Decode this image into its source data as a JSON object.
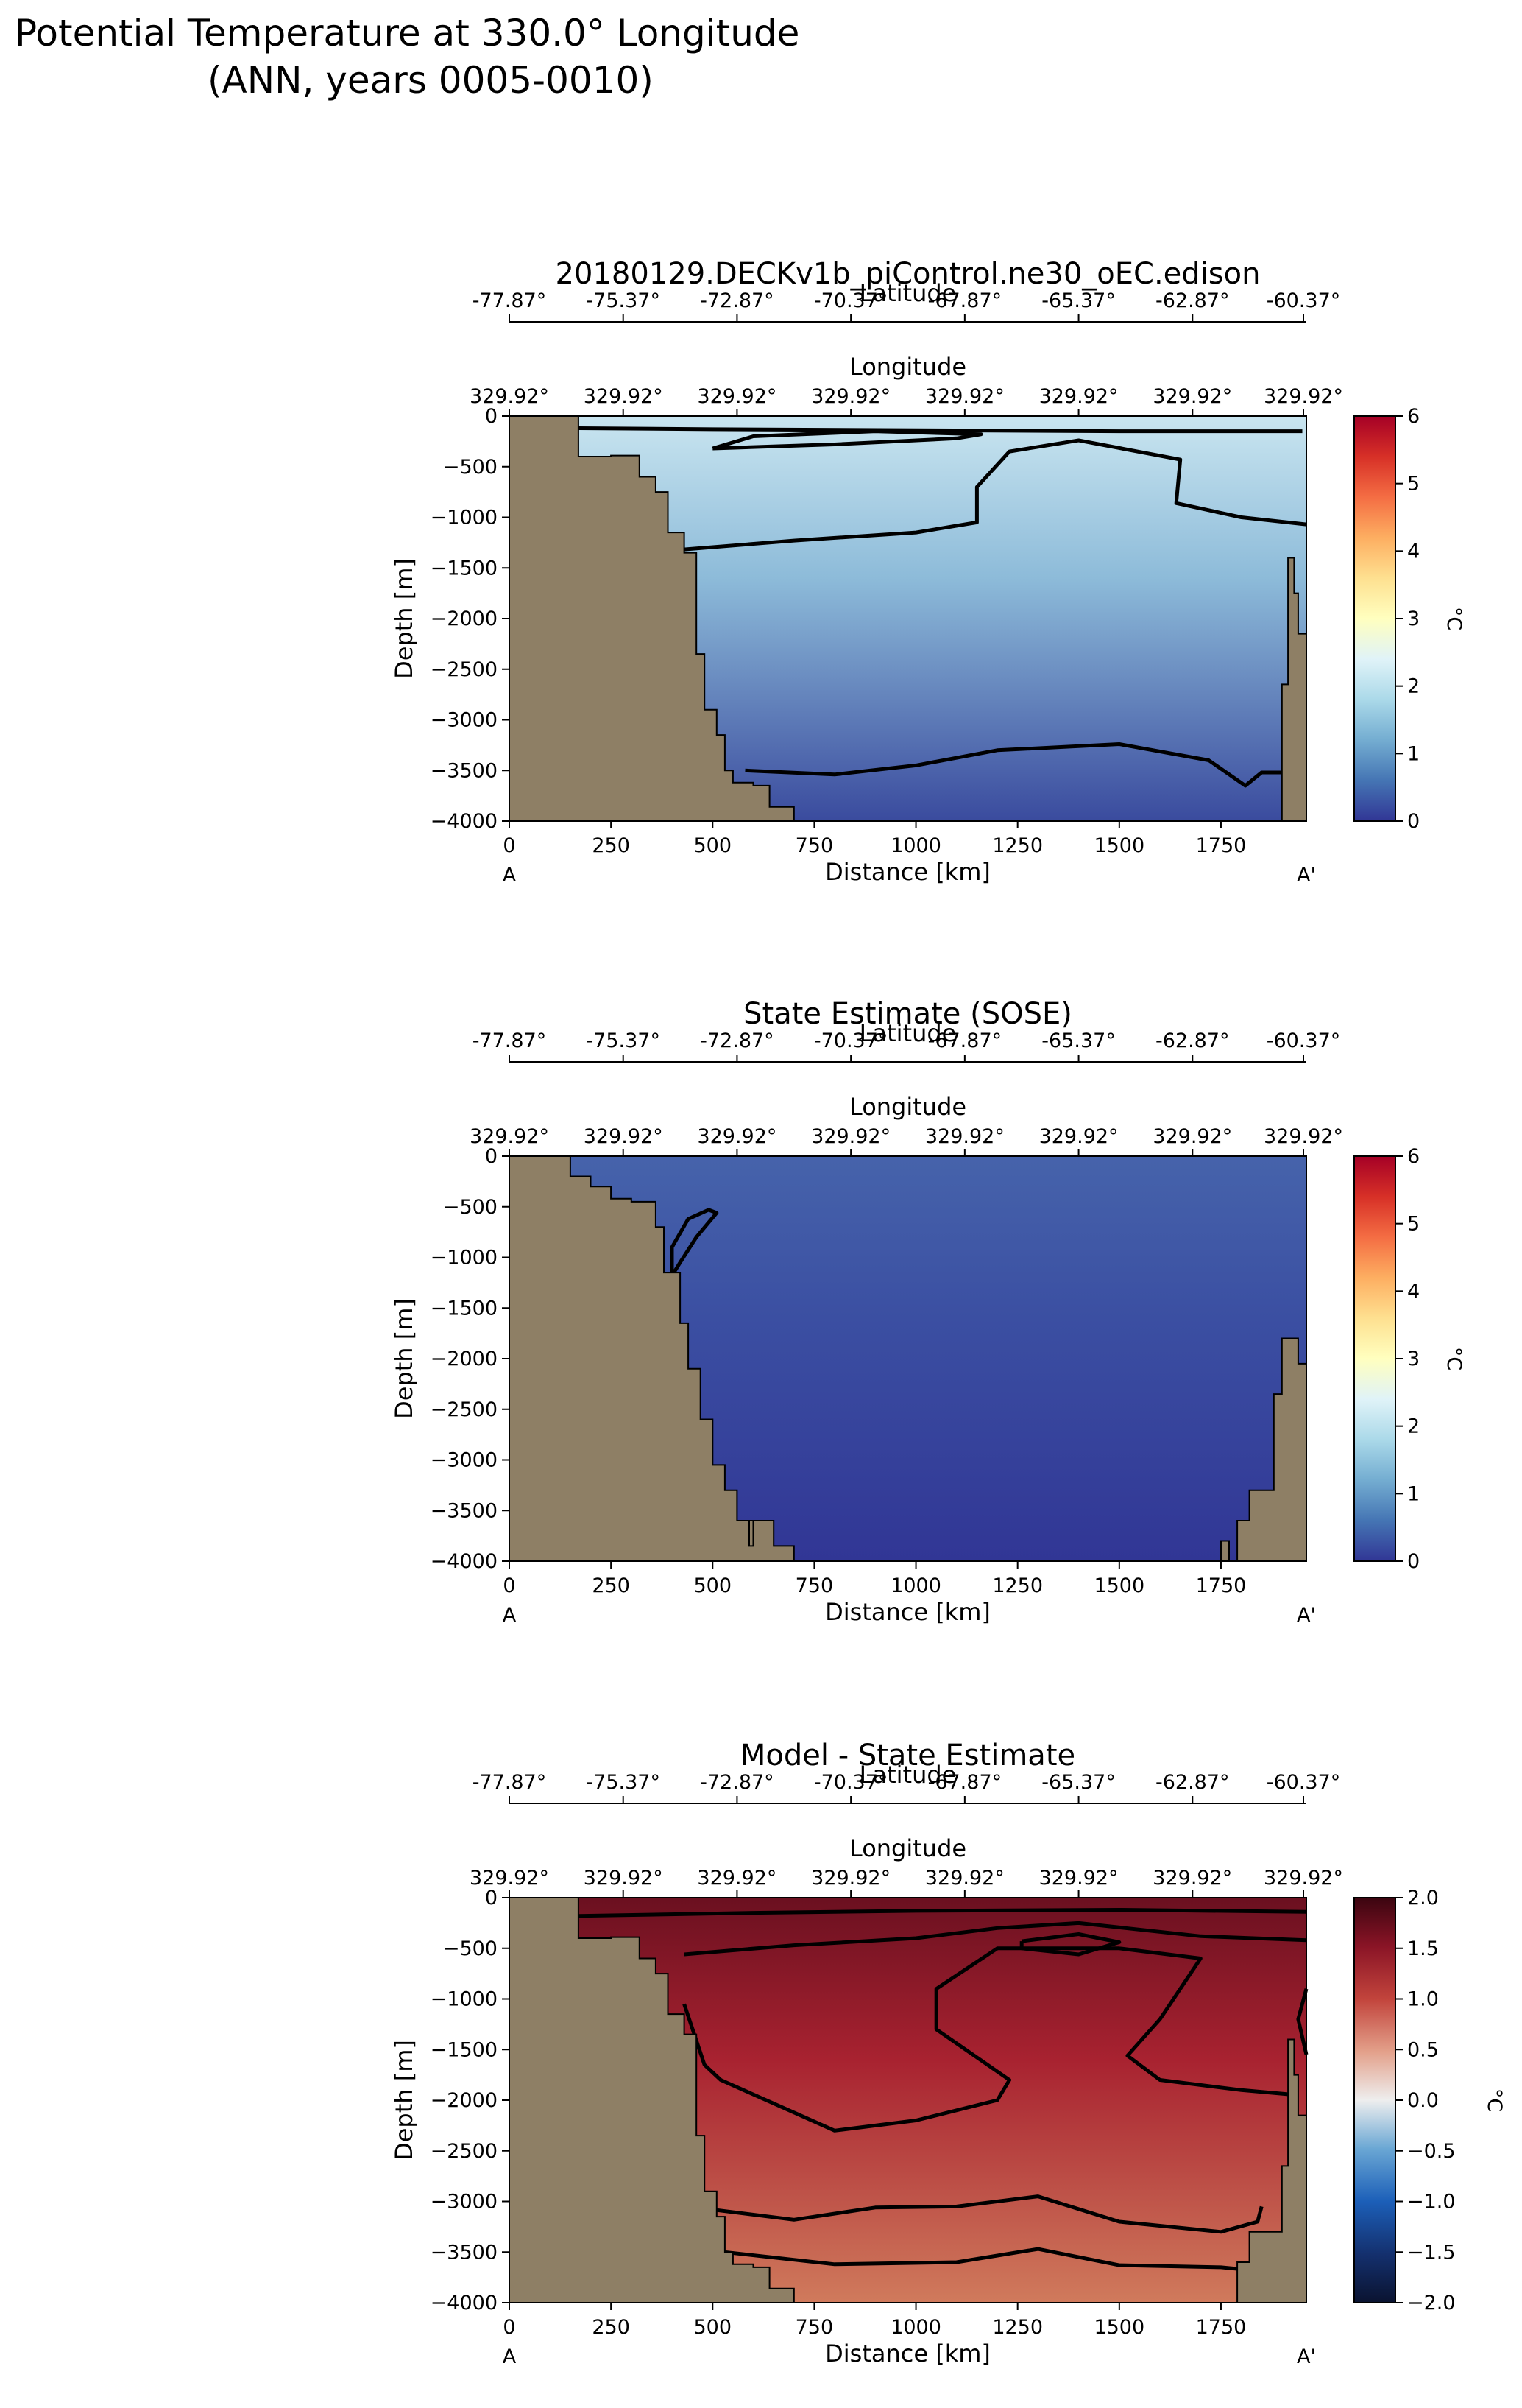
{
  "figure": {
    "title_line1": "Potential Temperature at 330.0° Longitude",
    "title_line2": "(ANN, years 0005-0010)"
  },
  "chart_data": [
    {
      "type": "heatmap",
      "title": "20180129.DECKv1b_piControl.ne30_oEC.edison",
      "xlabel": "Distance [km]",
      "ylabel": "Depth [m]",
      "xlim": [
        0,
        1960
      ],
      "ylim": [
        -4000,
        0
      ],
      "x_ticks": [
        0,
        250,
        500,
        750,
        1000,
        1250,
        1500,
        1750
      ],
      "y_ticks": [
        0,
        -500,
        -1000,
        -1500,
        -2000,
        -2500,
        -3000,
        -3500,
        -4000
      ],
      "section_start_label": "A",
      "section_end_label": "A'",
      "lat_axis_label": "Latitude",
      "lat_ticks": [
        "-77.87°",
        "-75.37°",
        "-72.87°",
        "-70.37°",
        "-67.87°",
        "-65.37°",
        "-62.87°",
        "-60.37°"
      ],
      "lon_axis_label": "Longitude",
      "lon_ticks": [
        "329.92°",
        "329.92°",
        "329.92°",
        "329.92°",
        "329.92°",
        "329.92°",
        "329.92°",
        "329.92°"
      ],
      "colorbar": {
        "label": "°C",
        "cmap": "RdYlBu_r",
        "vmin": 0,
        "vmax": 6,
        "ticks": [
          0,
          1,
          2,
          3,
          4,
          5,
          6
        ]
      },
      "field_colors": {
        "surface": "#c9e5f0",
        "mid": "#8dbbd9",
        "deep": "#3a4b9e"
      },
      "contours": [
        [
          [
            1950,
            -150
          ],
          [
            1500,
            -150
          ],
          [
            1000,
            -140
          ],
          [
            500,
            -130
          ],
          [
            170,
            -120
          ]
        ],
        [
          [
            500,
            -320
          ],
          [
            800,
            -280
          ],
          [
            1100,
            -220
          ],
          [
            1160,
            -180
          ],
          [
            900,
            -150
          ],
          [
            600,
            -200
          ],
          [
            500,
            -320
          ]
        ],
        [
          [
            390,
            -1330
          ],
          [
            700,
            -1230
          ],
          [
            1000,
            -1150
          ],
          [
            1150,
            -1050
          ],
          [
            1150,
            -700
          ],
          [
            1230,
            -350
          ],
          [
            1400,
            -240
          ],
          [
            1650,
            -430
          ],
          [
            1640,
            -860
          ],
          [
            1800,
            -1000
          ],
          [
            1960,
            -1070
          ]
        ],
        [
          [
            580,
            -3500
          ],
          [
            800,
            -3540
          ],
          [
            1000,
            -3450
          ],
          [
            1200,
            -3300
          ],
          [
            1500,
            -3240
          ],
          [
            1720,
            -3400
          ],
          [
            1810,
            -3650
          ],
          [
            1850,
            -3520
          ],
          [
            1960,
            -3520
          ]
        ]
      ],
      "topography": [
        [
          0,
          0
        ],
        [
          170,
          0
        ],
        [
          170,
          -400
        ],
        [
          250,
          -400
        ],
        [
          250,
          -390
        ],
        [
          320,
          -390
        ],
        [
          320,
          -600
        ],
        [
          360,
          -600
        ],
        [
          360,
          -750
        ],
        [
          390,
          -750
        ],
        [
          390,
          -1150
        ],
        [
          430,
          -1150
        ],
        [
          430,
          -1350
        ],
        [
          460,
          -1350
        ],
        [
          460,
          -2350
        ],
        [
          480,
          -2350
        ],
        [
          480,
          -2900
        ],
        [
          510,
          -2900
        ],
        [
          510,
          -3150
        ],
        [
          530,
          -3150
        ],
        [
          530,
          -3500
        ],
        [
          550,
          -3500
        ],
        [
          550,
          -3620
        ],
        [
          600,
          -3620
        ],
        [
          600,
          -3650
        ],
        [
          640,
          -3650
        ],
        [
          640,
          -3860
        ],
        [
          700,
          -3860
        ],
        [
          700,
          -4000
        ],
        [
          0,
          -4000
        ]
      ],
      "topography_right": [
        [
          1960,
          -4000
        ],
        [
          1960,
          -2150
        ],
        [
          1940,
          -2150
        ],
        [
          1940,
          -1750
        ],
        [
          1930,
          -1750
        ],
        [
          1930,
          -1400
        ],
        [
          1915,
          -1400
        ],
        [
          1915,
          -2650
        ],
        [
          1900,
          -2650
        ],
        [
          1900,
          -4000
        ]
      ]
    },
    {
      "type": "heatmap",
      "title": "State Estimate (SOSE)",
      "xlabel": "Distance [km]",
      "ylabel": "Depth [m]",
      "xlim": [
        0,
        1960
      ],
      "ylim": [
        -4000,
        0
      ],
      "x_ticks": [
        0,
        250,
        500,
        750,
        1000,
        1250,
        1500,
        1750
      ],
      "y_ticks": [
        0,
        -500,
        -1000,
        -1500,
        -2000,
        -2500,
        -3000,
        -3500,
        -4000
      ],
      "section_start_label": "A",
      "section_end_label": "A'",
      "lat_axis_label": "Latitude",
      "lat_ticks": [
        "-77.87°",
        "-75.37°",
        "-72.87°",
        "-70.37°",
        "-67.87°",
        "-65.37°",
        "-62.87°",
        "-60.37°"
      ],
      "lon_axis_label": "Longitude",
      "lon_ticks": [
        "329.92°",
        "329.92°",
        "329.92°",
        "329.92°",
        "329.92°",
        "329.92°",
        "329.92°",
        "329.92°"
      ],
      "colorbar": {
        "label": "°C",
        "cmap": "RdYlBu_r",
        "vmin": 0,
        "vmax": 6,
        "ticks": [
          0,
          1,
          2,
          3,
          4,
          5,
          6
        ]
      },
      "field_colors": {
        "surface": "#4663ab",
        "mid": "#3b4fa2",
        "deep": "#313695"
      },
      "contours": [
        [
          [
            400,
            -1180
          ],
          [
            420,
            -1050
          ],
          [
            460,
            -800
          ],
          [
            510,
            -560
          ],
          [
            490,
            -530
          ],
          [
            440,
            -620
          ],
          [
            400,
            -900
          ],
          [
            400,
            -1180
          ]
        ]
      ],
      "topography": [
        [
          0,
          0
        ],
        [
          150,
          0
        ],
        [
          150,
          -200
        ],
        [
          200,
          -200
        ],
        [
          200,
          -300
        ],
        [
          250,
          -300
        ],
        [
          250,
          -420
        ],
        [
          300,
          -420
        ],
        [
          300,
          -450
        ],
        [
          360,
          -450
        ],
        [
          360,
          -700
        ],
        [
          380,
          -700
        ],
        [
          380,
          -1150
        ],
        [
          420,
          -1150
        ],
        [
          420,
          -1650
        ],
        [
          440,
          -1650
        ],
        [
          440,
          -2100
        ],
        [
          470,
          -2100
        ],
        [
          470,
          -2600
        ],
        [
          500,
          -2600
        ],
        [
          500,
          -3050
        ],
        [
          530,
          -3050
        ],
        [
          530,
          -3300
        ],
        [
          560,
          -3300
        ],
        [
          560,
          -3600
        ],
        [
          600,
          -3600
        ],
        [
          600,
          -3850
        ],
        [
          590,
          -3850
        ],
        [
          590,
          -3600
        ],
        [
          610,
          -3600
        ],
        [
          610,
          -3600
        ],
        [
          650,
          -3600
        ],
        [
          650,
          -3850
        ],
        [
          700,
          -3850
        ],
        [
          700,
          -4000
        ],
        [
          0,
          -4000
        ]
      ],
      "topography_right": [
        [
          1960,
          -4000
        ],
        [
          1960,
          -2050
        ],
        [
          1940,
          -2050
        ],
        [
          1940,
          -1800
        ],
        [
          1900,
          -1800
        ],
        [
          1900,
          -2350
        ],
        [
          1880,
          -2350
        ],
        [
          1880,
          -3300
        ],
        [
          1820,
          -3300
        ],
        [
          1820,
          -3600
        ],
        [
          1790,
          -3600
        ],
        [
          1790,
          -4000
        ],
        [
          1770,
          -4000
        ],
        [
          1770,
          -3800
        ],
        [
          1750,
          -3800
        ],
        [
          1750,
          -4000
        ]
      ]
    },
    {
      "type": "heatmap",
      "title": "Model - State Estimate",
      "xlabel": "Distance [km]",
      "ylabel": "Depth [m]",
      "xlim": [
        0,
        1960
      ],
      "ylim": [
        -4000,
        0
      ],
      "x_ticks": [
        0,
        250,
        500,
        750,
        1000,
        1250,
        1500,
        1750
      ],
      "y_ticks": [
        0,
        -500,
        -1000,
        -1500,
        -2000,
        -2500,
        -3000,
        -3500,
        -4000
      ],
      "section_start_label": "A",
      "section_end_label": "A'",
      "lat_axis_label": "Latitude",
      "lat_ticks": [
        "-77.87°",
        "-75.37°",
        "-72.87°",
        "-70.37°",
        "-67.87°",
        "-65.37°",
        "-62.87°",
        "-60.37°"
      ],
      "lon_axis_label": "Longitude",
      "lon_ticks": [
        "329.92°",
        "329.92°",
        "329.92°",
        "329.92°",
        "329.92°",
        "329.92°",
        "329.92°",
        "329.92°"
      ],
      "colorbar": {
        "label": "°C",
        "cmap": "RdBu_r (dark)",
        "vmin": -2,
        "vmax": 2,
        "ticks": [
          2.0,
          1.5,
          1.0,
          0.5,
          0.0,
          -0.5,
          -1.0,
          -1.5,
          -2.0
        ],
        "tick_labels": [
          "2.0",
          "1.5",
          "1.0",
          "0.5",
          "0.0",
          "−0.5",
          "−1.0",
          "−1.5",
          "−2.0"
        ]
      },
      "field_colors": {
        "surface": "#6b1020",
        "mid": "#a82230",
        "deep": "#d07a5c"
      },
      "contours": [
        [
          [
            170,
            -180
          ],
          [
            600,
            -150
          ],
          [
            1000,
            -130
          ],
          [
            1500,
            -120
          ],
          [
            1960,
            -140
          ]
        ],
        [
          [
            430,
            -560
          ],
          [
            700,
            -470
          ],
          [
            1000,
            -400
          ],
          [
            1200,
            -300
          ],
          [
            1400,
            -250
          ],
          [
            1700,
            -380
          ],
          [
            1960,
            -420
          ]
        ],
        [
          [
            1260,
            -430
          ],
          [
            1400,
            -360
          ],
          [
            1500,
            -440
          ],
          [
            1400,
            -560
          ],
          [
            1260,
            -500
          ],
          [
            1260,
            -430
          ]
        ],
        [
          [
            430,
            -1050
          ],
          [
            480,
            -1650
          ],
          [
            520,
            -1800
          ],
          [
            800,
            -2300
          ],
          [
            1000,
            -2200
          ],
          [
            1200,
            -2000
          ],
          [
            1230,
            -1800
          ],
          [
            1050,
            -1300
          ],
          [
            1050,
            -900
          ],
          [
            1200,
            -500
          ],
          [
            1500,
            -500
          ],
          [
            1700,
            -600
          ],
          [
            1600,
            -1200
          ],
          [
            1520,
            -1560
          ],
          [
            1600,
            -1800
          ],
          [
            1800,
            -1900
          ],
          [
            1940,
            -1950
          ]
        ],
        [
          [
            1960,
            -1550
          ],
          [
            1940,
            -1200
          ],
          [
            1960,
            -900
          ]
        ],
        [
          [
            460,
            -3060
          ],
          [
            700,
            -3180
          ],
          [
            900,
            -3060
          ],
          [
            1100,
            -3050
          ],
          [
            1300,
            -2950
          ],
          [
            1500,
            -3200
          ],
          [
            1750,
            -3300
          ],
          [
            1840,
            -3200
          ],
          [
            1850,
            -3050
          ]
        ],
        [
          [
            530,
            -3500
          ],
          [
            800,
            -3620
          ],
          [
            1100,
            -3600
          ],
          [
            1300,
            -3470
          ],
          [
            1500,
            -3630
          ],
          [
            1750,
            -3650
          ],
          [
            1880,
            -3700
          ]
        ]
      ],
      "topography": [
        [
          0,
          0
        ],
        [
          170,
          0
        ],
        [
          170,
          -400
        ],
        [
          250,
          -400
        ],
        [
          250,
          -390
        ],
        [
          320,
          -390
        ],
        [
          320,
          -600
        ],
        [
          360,
          -600
        ],
        [
          360,
          -750
        ],
        [
          390,
          -750
        ],
        [
          390,
          -1150
        ],
        [
          430,
          -1150
        ],
        [
          430,
          -1350
        ],
        [
          460,
          -1350
        ],
        [
          460,
          -2350
        ],
        [
          480,
          -2350
        ],
        [
          480,
          -2900
        ],
        [
          510,
          -2900
        ],
        [
          510,
          -3150
        ],
        [
          530,
          -3150
        ],
        [
          530,
          -3500
        ],
        [
          550,
          -3500
        ],
        [
          550,
          -3620
        ],
        [
          600,
          -3620
        ],
        [
          600,
          -3650
        ],
        [
          640,
          -3650
        ],
        [
          640,
          -3860
        ],
        [
          700,
          -3860
        ],
        [
          700,
          -4000
        ],
        [
          0,
          -4000
        ]
      ],
      "topography_right": [
        [
          1960,
          -4000
        ],
        [
          1960,
          -2150
        ],
        [
          1940,
          -2150
        ],
        [
          1940,
          -1750
        ],
        [
          1930,
          -1750
        ],
        [
          1930,
          -1400
        ],
        [
          1915,
          -1400
        ],
        [
          1915,
          -2650
        ],
        [
          1900,
          -2650
        ],
        [
          1900,
          -3300
        ],
        [
          1820,
          -3300
        ],
        [
          1820,
          -3600
        ],
        [
          1790,
          -3600
        ],
        [
          1790,
          -4000
        ]
      ]
    }
  ]
}
